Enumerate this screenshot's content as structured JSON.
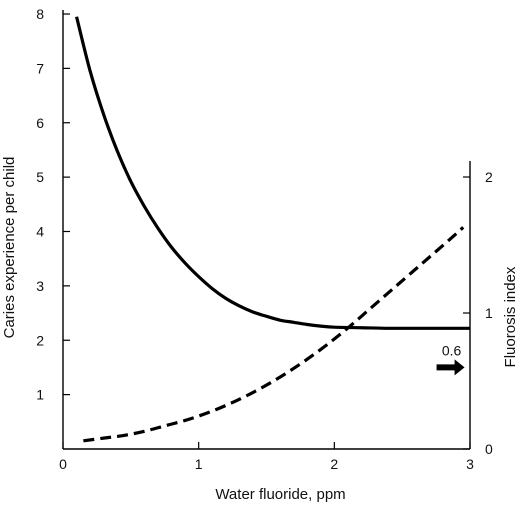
{
  "chart_data": {
    "type": "line",
    "xlabel": "Water fluoride, ppm",
    "ylabel": "Caries experience per child",
    "y2label": "Fluorosis index",
    "xlim": [
      0,
      3
    ],
    "ylim": [
      0,
      8
    ],
    "y2lim": [
      0,
      2
    ],
    "x_ticks": [
      "0",
      "1",
      "2",
      "3"
    ],
    "y_ticks": [
      "1",
      "2",
      "3",
      "4",
      "5",
      "6",
      "7",
      "8"
    ],
    "y2_ticks": [
      "0",
      "1",
      "2"
    ],
    "grid": false,
    "series": [
      {
        "axis": "left",
        "style": "solid",
        "color": "#000000",
        "x": [
          0.1,
          0.2,
          0.3,
          0.4,
          0.5,
          0.6,
          0.7,
          0.8,
          0.9,
          1.0,
          1.1,
          1.2,
          1.3,
          1.4,
          1.5,
          1.6,
          1.7,
          1.8,
          1.9,
          2.0,
          2.2,
          2.4,
          2.6,
          2.8,
          3.0
        ],
        "y": [
          7.95,
          6.95,
          6.15,
          5.48,
          4.92,
          4.46,
          4.06,
          3.71,
          3.42,
          3.17,
          2.95,
          2.77,
          2.63,
          2.52,
          2.44,
          2.37,
          2.33,
          2.29,
          2.26,
          2.24,
          2.23,
          2.22,
          2.22,
          2.22,
          2.22
        ]
      },
      {
        "axis": "right",
        "style": "dashed",
        "color": "#000000",
        "x": [
          0.15,
          0.3,
          0.45,
          0.6,
          0.75,
          0.9,
          1.05,
          1.2,
          1.35,
          1.5,
          1.65,
          1.8,
          1.95,
          2.1,
          2.25,
          2.4,
          2.55,
          2.7,
          2.85,
          2.95
        ],
        "y": [
          0.06,
          0.08,
          0.1,
          0.13,
          0.17,
          0.21,
          0.26,
          0.32,
          0.39,
          0.47,
          0.56,
          0.66,
          0.77,
          0.89,
          1.02,
          1.15,
          1.28,
          1.41,
          1.54,
          1.63
        ]
      }
    ],
    "annotations": [
      {
        "text": "0.6",
        "arrow": "right",
        "x": 2.96,
        "y2": 0.6
      }
    ]
  }
}
